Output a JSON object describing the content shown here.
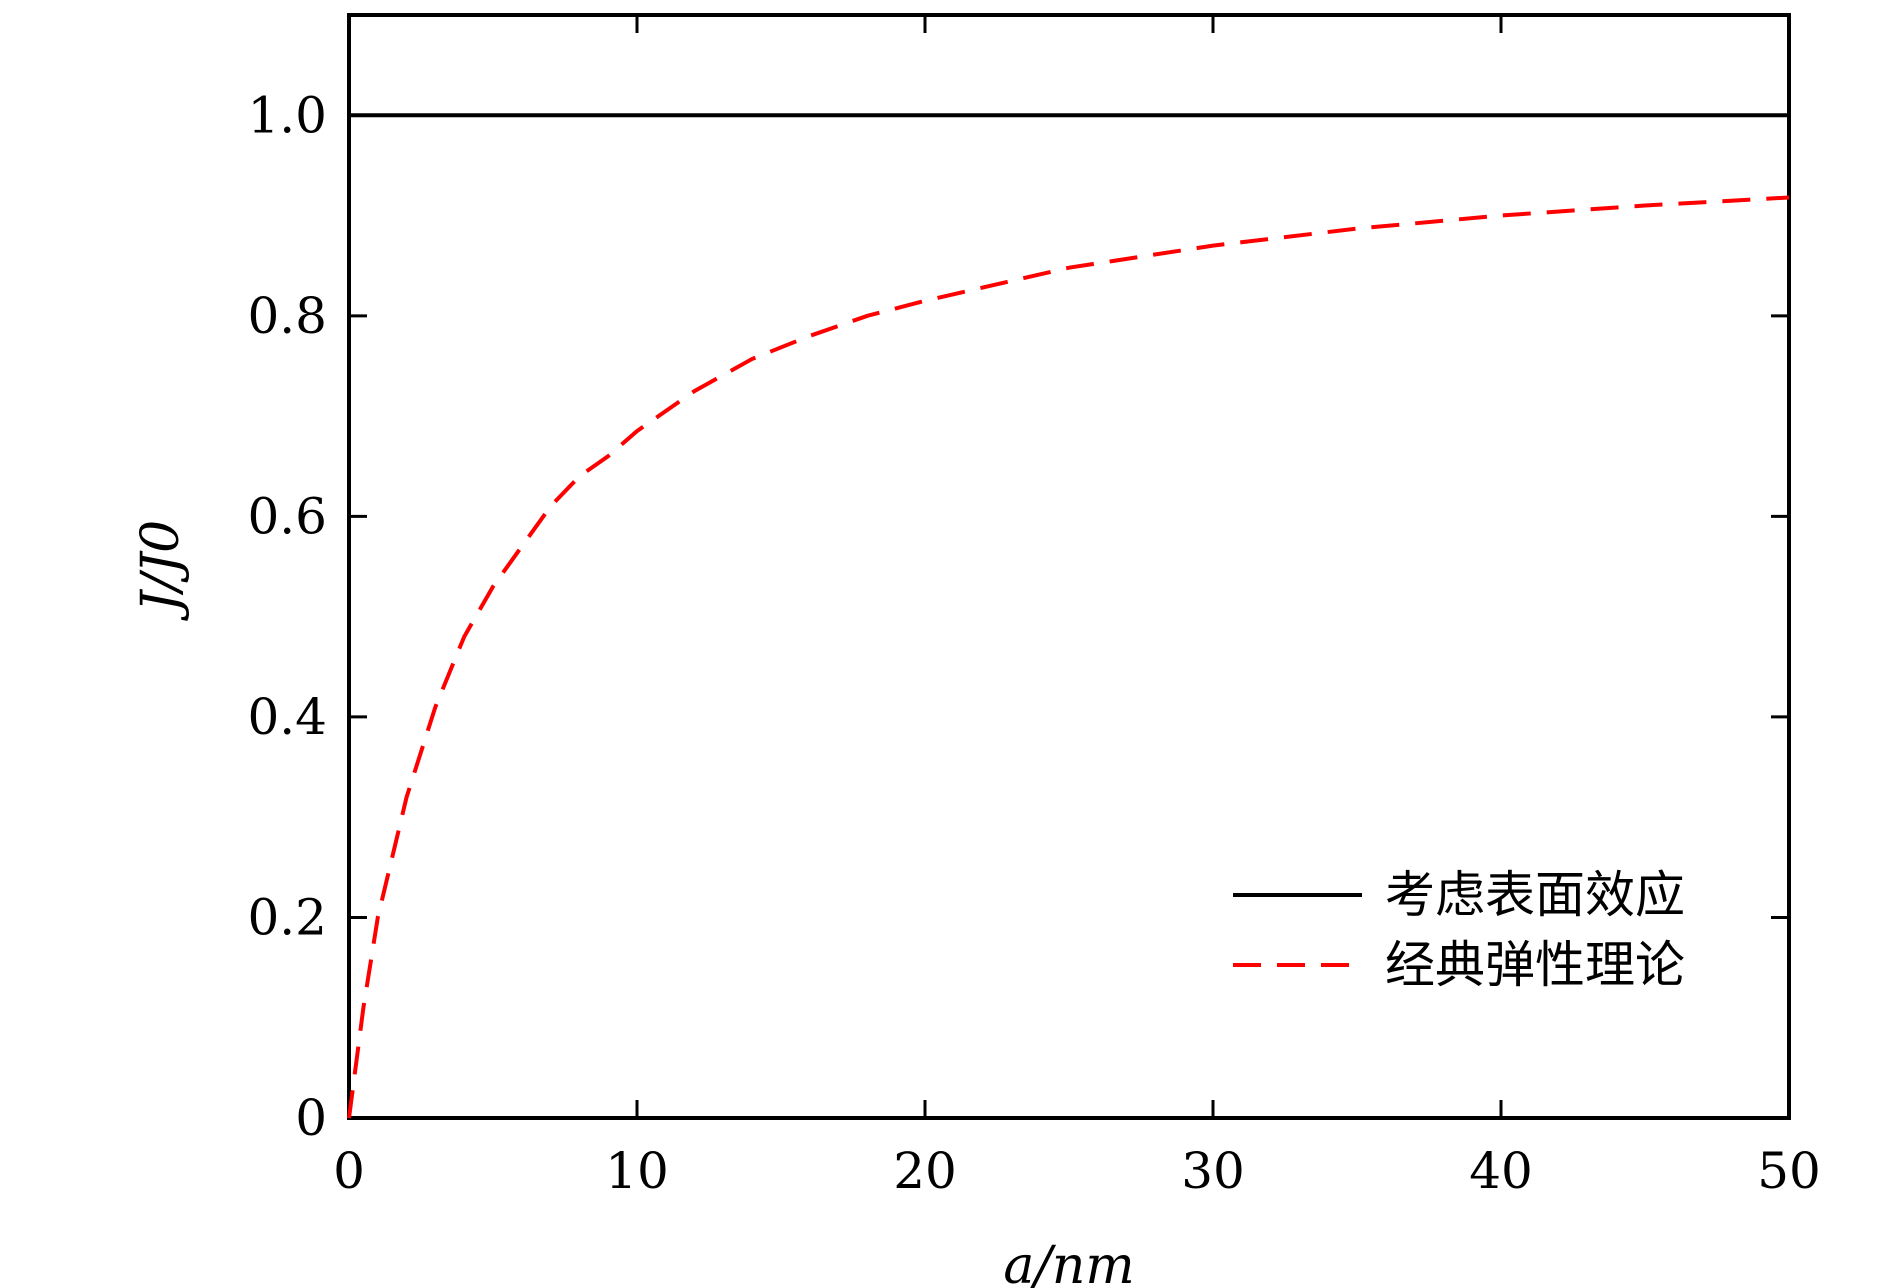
{
  "chart_data": {
    "type": "line",
    "xlabel": "a/nm",
    "ylabel": "J/J0",
    "xlim": [
      0,
      50
    ],
    "ylim": [
      0,
      1.1
    ],
    "x_ticks": [
      {
        "value": 0,
        "label": "0"
      },
      {
        "value": 10,
        "label": "10"
      },
      {
        "value": 20,
        "label": "20"
      },
      {
        "value": 30,
        "label": "30"
      },
      {
        "value": 40,
        "label": "40"
      },
      {
        "value": 50,
        "label": "50"
      }
    ],
    "y_ticks": [
      {
        "value": 0,
        "label": "0"
      },
      {
        "value": 0.2,
        "label": "0.2"
      },
      {
        "value": 0.4,
        "label": "0.4"
      },
      {
        "value": 0.6,
        "label": "0.6"
      },
      {
        "value": 0.8,
        "label": "0.8"
      },
      {
        "value": 1.0,
        "label": "1.0"
      }
    ],
    "grid": false,
    "legend_position": "lower-right",
    "series": [
      {
        "name": "考虑表面效应",
        "color": "#000000",
        "style": "solid",
        "x": [
          0,
          50
        ],
        "y": [
          1.0,
          1.0
        ]
      },
      {
        "name": "经典弹性理论",
        "color": "#ff0000",
        "style": "dashed",
        "x": [
          0,
          0.5,
          1,
          2,
          3,
          4,
          5,
          6,
          7,
          8,
          9,
          10,
          12,
          14,
          16,
          18,
          20,
          25,
          30,
          35,
          40,
          45,
          50
        ],
        "y": [
          0,
          0.11,
          0.2,
          0.32,
          0.41,
          0.48,
          0.53,
          0.57,
          0.61,
          0.64,
          0.66,
          0.685,
          0.725,
          0.757,
          0.78,
          0.8,
          0.815,
          0.848,
          0.87,
          0.887,
          0.9,
          0.91,
          0.918
        ]
      }
    ]
  }
}
